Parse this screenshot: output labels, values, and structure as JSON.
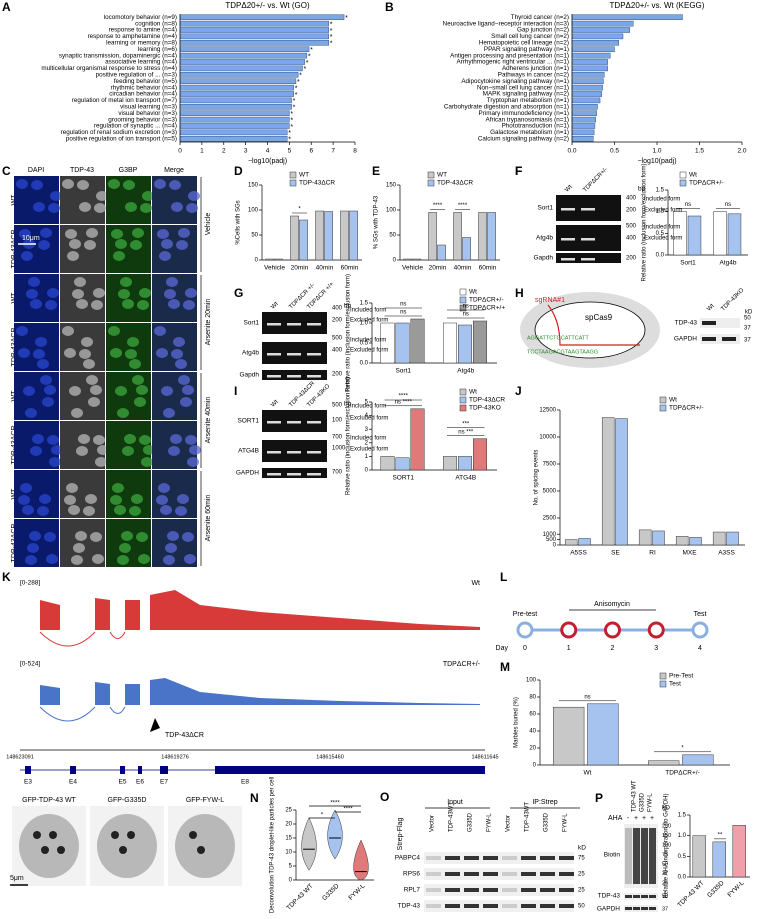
{
  "chart_data": [
    {
      "type": "barh",
      "label": "A",
      "title": "TDPΔ20+/- vs. Wt (GO)",
      "xlabel": "−log10(padj)",
      "color": "#7ba7e3",
      "xlim": [
        0,
        8
      ],
      "xticks": [
        0,
        1,
        2,
        3,
        4,
        5,
        6,
        7,
        8
      ],
      "categories": [
        "locomotory behavior (n=9)",
        "cognition (n=8)",
        "response to amine (n=4)",
        "response to amphetamine (n=4)",
        "learning or memory (n=8)",
        "learning (n=6)",
        "synaptic transmission, dopaminergic (n=4)",
        "associative learning (n=4)",
        "multicellular organismal response to stress (n=4)",
        "positive regulation of ... (n=3)",
        "feeding behavior (n=5)",
        "rhythmic behavior (n=4)",
        "circadian behavior (n=4)",
        "regulation of metal ion transport (n=7)",
        "visual learning (n=3)",
        "visual behavior (n=3)",
        "grooming behavior (n=3)",
        "regulation of synaptic ... (n=4)",
        "regulation of renal sodium excretion (n=3)",
        "positive regulation of ion transport (n=5)"
      ],
      "values": [
        7.5,
        6.8,
        6.8,
        6.8,
        6.8,
        5.9,
        5.8,
        5.7,
        5.6,
        5.4,
        5.3,
        5.2,
        5.2,
        5.1,
        5.1,
        5.0,
        5.0,
        5.0,
        4.9,
        4.9
      ],
      "significance": [
        "*",
        "*",
        "*",
        "*",
        "*",
        "*",
        "*",
        "*",
        "*",
        "*",
        "*",
        "*",
        "*",
        "*",
        "*",
        "*",
        "*",
        "*",
        "*",
        "*"
      ]
    },
    {
      "type": "barh",
      "label": "B",
      "title": "TDPΔ20+/- vs. Wt (KEGG)",
      "xlabel": "−log10(padj)",
      "color": "#7ba7e3",
      "xlim": [
        0,
        2
      ],
      "xticks": [
        {
          "value": 0,
          "label": "0.0"
        },
        {
          "value": 0.5,
          "label": "0.5"
        },
        {
          "value": 1,
          "label": "1.0"
        },
        {
          "value": 1.5,
          "label": "1.5"
        },
        {
          "value": 2,
          "label": "2.0"
        }
      ],
      "categories": [
        "Thyroid cancer (n=2)",
        "Neuroactive ligand−receptor interaction (n=3)",
        "Gap junction (n=2)",
        "Small cell lung cancer (n=2)",
        "Hematopoietic cell lineage (n=2)",
        "PPAR signaling pathway (n=1)",
        "Antigen processing and presentation (n=1)",
        "Arrhythmogenic right ventricular ... (n=1)",
        "Adherens junction (n=1)",
        "Pathways in cancer (n=2)",
        "Adipocytokine signaling pathway (n=1)",
        "Non−small cell lung cancer (n=1)",
        "MAPK signaling pathway (n=2)",
        "Tryptophan metabolism (n=1)",
        "Carbohydrate digestion and absorption (n=1)",
        "Primary immunodeficiency (n=1)",
        "African trypanosomiasis (n=1)",
        "Phototransduction (n=1)",
        "Galactose metabolism (n=1)",
        "Calcium signaling pathway (n=2)"
      ],
      "values": [
        1.3,
        0.72,
        0.68,
        0.6,
        0.55,
        0.5,
        0.45,
        0.42,
        0.42,
        0.38,
        0.37,
        0.36,
        0.35,
        0.33,
        0.3,
        0.29,
        0.28,
        0.27,
        0.26,
        0.25
      ]
    },
    {
      "type": "bar",
      "label": "D",
      "ylabel": "%Cells with SGs",
      "ylim": [
        0,
        150
      ],
      "yticks": [
        0,
        50,
        100,
        150
      ],
      "categories": [
        "Vehicle",
        "20min",
        "40min",
        "60min"
      ],
      "series": [
        {
          "name": "WT",
          "color": "#c8c8c8",
          "values": [
            2,
            88,
            98,
            98
          ]
        },
        {
          "name": "TDP-43ΔCR",
          "color": "#a6c3f0",
          "values": [
            2,
            80,
            97,
            98
          ]
        }
      ],
      "annotations": [
        [],
        [
          "*"
        ],
        [],
        []
      ]
    },
    {
      "type": "bar",
      "label": "E",
      "ylabel": "% SGs with TDP-43",
      "ylim": [
        0,
        150
      ],
      "yticks": [
        0,
        50,
        100,
        150
      ],
      "categories": [
        "Vehicle",
        "20min",
        "40min",
        "60min"
      ],
      "series": [
        {
          "name": "WT",
          "color": "#c8c8c8",
          "values": [
            2,
            95,
            95,
            95
          ]
        },
        {
          "name": "TDP-43ΔCR",
          "color": "#a6c3f0",
          "values": [
            2,
            30,
            45,
            95
          ]
        }
      ],
      "annotations": [
        [],
        [
          "****"
        ],
        [
          "****"
        ],
        []
      ]
    },
    {
      "type": "bar",
      "label": "F",
      "ylabel": "Relative ratio (inclusion form/exclusion form)",
      "ylim": [
        0,
        1.5
      ],
      "yticks": [
        {
          "value": 0,
          "label": "0.0"
        },
        {
          "value": 0.5,
          "label": "0.5"
        },
        {
          "value": 1,
          "label": "1.0"
        },
        {
          "value": 1.5,
          "label": "1.5"
        }
      ],
      "categories": [
        "Sort1",
        "Atg4b"
      ],
      "series": [
        {
          "name": "Wt",
          "color": "#ffffff",
          "values": [
            1.0,
            1.0
          ]
        },
        {
          "name": "TDPΔCR+/-",
          "color": "#a6c3f0",
          "values": [
            0.9,
            0.95
          ]
        }
      ],
      "annotations": [
        [
          "ns"
        ],
        [
          "ns"
        ]
      ]
    },
    {
      "type": "bar",
      "label": "G",
      "ylabel": "Relative ratio (inclusion form/exclusion form)",
      "ylim": [
        0,
        1.5
      ],
      "yticks": [
        {
          "value": 0,
          "label": "0.0"
        },
        {
          "value": 0.5,
          "label": "0.5"
        },
        {
          "value": 1,
          "label": "1.0"
        },
        {
          "value": 1.5,
          "label": "1.5"
        }
      ],
      "categories": [
        "Sort1",
        "Atg4b"
      ],
      "series": [
        {
          "name": "Wt",
          "color": "#ffffff",
          "values": [
            1.0,
            1.0
          ]
        },
        {
          "name": "TDPΔCR+/-",
          "color": "#a6c3f0",
          "values": [
            1.0,
            0.95
          ]
        },
        {
          "name": "TDPΔCR+/+",
          "color": "#9a9a9a",
          "values": [
            1.1,
            1.05
          ]
        }
      ],
      "annotations": [
        [
          "ns",
          "ns"
        ],
        [
          "ns",
          "ns"
        ]
      ]
    },
    {
      "type": "bar",
      "label": "I",
      "ylabel": "Relative ratio (inclusion form/exclusion form)",
      "ylim": [
        0,
        5
      ],
      "yticks": [
        0,
        1,
        2,
        3,
        4,
        5
      ],
      "categories": [
        "SORT1",
        "ATG4B"
      ],
      "series": [
        {
          "name": "Wt",
          "color": "#c8c8c8",
          "values": [
            1.0,
            1.0
          ]
        },
        {
          "name": "TDP-43ΔCR",
          "color": "#a6c3f0",
          "values": [
            0.9,
            1.0
          ]
        },
        {
          "name": "TDP-43KO",
          "color": "#e07a7a",
          "values": [
            4.5,
            2.3
          ]
        }
      ],
      "annotations": [
        [
          "ns ****",
          "****"
        ],
        [
          "ns ***",
          "***"
        ]
      ]
    },
    {
      "type": "bar",
      "label": "J",
      "ylabel": "No. of spicing events",
      "ylim": [
        0,
        12500
      ],
      "yticks": [
        0,
        500,
        1000,
        2500,
        5000,
        7500,
        10000,
        12500
      ],
      "categories": [
        "A5SS",
        "SE",
        "RI",
        "MXE",
        "A3SS"
      ],
      "series": [
        {
          "name": "Wt",
          "color": "#c8c8c8",
          "values": [
            500,
            11800,
            1400,
            800,
            1200
          ]
        },
        {
          "name": "TDPΔCR+/-",
          "color": "#a6c3f0",
          "values": [
            600,
            11700,
            1300,
            700,
            1200
          ]
        }
      ],
      "annotations": [
        [],
        [],
        [],
        [],
        []
      ]
    },
    {
      "type": "bar",
      "label": "M",
      "ylabel": "Marbles buried (%)",
      "ylim": [
        0,
        100
      ],
      "yticks": [
        0,
        20,
        40,
        60,
        80,
        100
      ],
      "categories": [
        "Wt",
        "TDPΔCR+/-"
      ],
      "series": [
        {
          "name": "Pre-Test",
          "color": "#c8c8c8",
          "values": [
            68,
            5
          ]
        },
        {
          "name": "Test",
          "color": "#a6c3f0",
          "values": [
            72,
            12
          ]
        }
      ],
      "annotations": [
        [
          "ns"
        ],
        [
          "*"
        ]
      ]
    },
    {
      "type": "violin",
      "label": "N",
      "ylabel": "Deconvolution TDP-43 droplet-like particles per cell",
      "ylim": [
        0,
        25
      ],
      "yticks": [
        0,
        5,
        10,
        15,
        20,
        25
      ],
      "categories": [
        "TDP-43 WT",
        "G335D",
        "FYW-L"
      ],
      "colors": [
        "#c8c8c8",
        "#a6c3f0",
        "#e07a7a"
      ],
      "values": [
        11,
        15,
        3
      ],
      "annotations": [
        "*",
        "****",
        "****"
      ]
    },
    {
      "type": "bar",
      "label": "P",
      "ylabel": "Relative AHA incorporation (to GAPDH)",
      "ylim": [
        0,
        1.5
      ],
      "yticks": [
        {
          "value": 0,
          "label": "0.0"
        },
        {
          "value": 0.5,
          "label": "0.5"
        },
        {
          "value": 1,
          "label": "1.0"
        },
        {
          "value": 1.5,
          "label": "1.5"
        }
      ],
      "categories": [
        "TDP-43 WT",
        "G335D",
        "FYW-L"
      ],
      "colors": [
        "#c8c8c8",
        "#a6c3f0",
        "#f0a0a8"
      ],
      "values": [
        1.0,
        0.85,
        1.25
      ],
      "annotations": [
        [],
        [
          "**"
        ],
        []
      ]
    }
  ],
  "panels": {
    "C": {
      "label": "C",
      "columns": [
        "DAPI",
        "TDP-43",
        "G3BP",
        "Merge"
      ],
      "rows": [
        "WT",
        "TDP-43ΔCR",
        "WT",
        "TDP-43ΔCR",
        "WT",
        "TDP-43ΔCR",
        "WT",
        "TDP-43ΔCR"
      ],
      "conditions": [
        "Vehicle",
        "Arsenite 20min",
        "Arsenite 40min",
        "Arsenite 60min"
      ],
      "scale": "10μm"
    },
    "F": {
      "lanes": [
        "Wt",
        "TDPΔCR+/-"
      ],
      "unit": "bp",
      "genes": [
        "Sort1",
        "Atg4b",
        "Gapdh"
      ],
      "sizes": [
        "400",
        "200",
        "500",
        "400",
        "200"
      ],
      "forms": [
        "Included form",
        "Excluded form",
        "Included form",
        "Excluded form"
      ]
    },
    "G": {
      "lanes": [
        "Wt",
        "TDPΔCR +/-",
        "TDPΔCR +/+"
      ],
      "unit": "bp",
      "genes": [
        "Sort1",
        "Atg4b",
        "Gapdh"
      ],
      "sizes": [
        "400",
        "200",
        "500",
        "400",
        "200"
      ],
      "forms": [
        "Included form",
        "Excluded form",
        "Included form",
        "Excluded form"
      ]
    },
    "H": {
      "label": "H",
      "sgrna": "sgRNA#1",
      "cas": "spCas9",
      "seq": [
        "AGGATTCTGCATTCATT",
        "TCCTAAGACGTAAGTAAGG"
      ],
      "lanes": [
        "Wt",
        "TDP-43KO"
      ],
      "unit": "kD",
      "proteins": [
        "TDP-43",
        "GAPDH"
      ],
      "sizes": [
        "50",
        "37",
        "37"
      ]
    },
    "I": {
      "lanes": [
        "Wt",
        "TDP-43ΔCR",
        "TDP-43KO"
      ],
      "unit": "bp",
      "genes": [
        "SORT1",
        "ATG4B",
        "GAPDH"
      ],
      "sizes": [
        "500",
        "100",
        "700",
        "1000",
        "700"
      ],
      "forms": [
        "Included form",
        "Excluded form",
        "Included form",
        "Excluded form"
      ]
    },
    "K": {
      "label": "K",
      "ranges": [
        "[0-288]",
        "[0-524]"
      ],
      "tracks": [
        "Wt",
        "TDPΔCR+/-"
      ],
      "arrow": "TDP-43ΔCR",
      "coords": [
        "148623091",
        "148619276",
        "148615460",
        "148611645"
      ],
      "exons": [
        "E3",
        "E4",
        "E5",
        "E6",
        "E7",
        "E8"
      ]
    },
    "L": {
      "label": "L",
      "pretest": "Pre-test",
      "drug": "Anisomycin",
      "test": "Test",
      "day": "Day",
      "days": [
        "0",
        "1",
        "2",
        "3",
        "4"
      ]
    },
    "N": {
      "images": [
        "GFP-TDP-43 WT",
        "GFP-G335D",
        "GFP-FYW-L"
      ],
      "scale": "5μm"
    },
    "O": {
      "label": "O",
      "headers": [
        "Input",
        "IP:Strep"
      ],
      "rowlabel": "Strep-Flag",
      "lanes": [
        "Vector",
        "TDP-43WT",
        "G335D",
        "FYW-L",
        "Vector",
        "TDP-43WT",
        "G335D",
        "FYW-L"
      ],
      "proteins": [
        "PABPC4",
        "RPS6",
        "RPL7",
        "TDP-43"
      ],
      "unit": "kD",
      "sizes": [
        "75",
        "25",
        "25",
        "50"
      ]
    },
    "P": {
      "aha": "AHA",
      "signs": [
        "-",
        "+",
        "+",
        "+"
      ],
      "lanes": [
        "TDP-43 WT",
        "G335D",
        "FYW-L"
      ],
      "unit": "kD",
      "proteins": [
        "Biotin",
        "TDP-43",
        "GAPDH"
      ],
      "sizes": [
        "250",
        "150",
        "100",
        "75",
        "50",
        "37",
        "25",
        "50",
        "37"
      ]
    }
  }
}
